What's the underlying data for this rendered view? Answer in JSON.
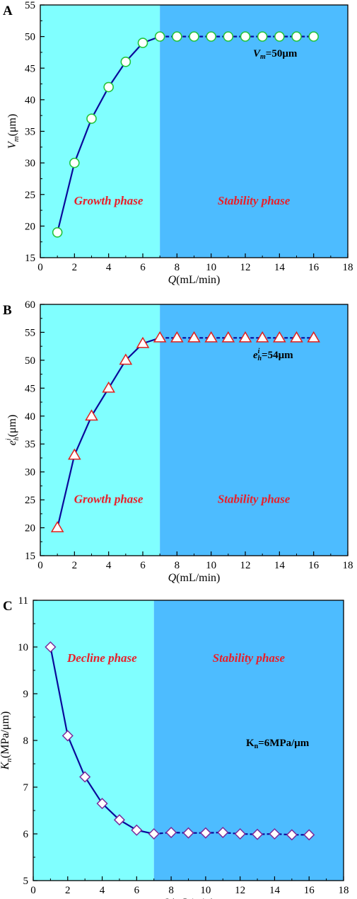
{
  "chart_data": [
    {
      "panel_label": "A",
      "type": "line",
      "xlabel_var": "Q",
      "xlabel_unit": "(mL/min)",
      "ylabel_var": "V",
      "ylabel_sub": "m",
      "ylabel_unit": "(μm)",
      "xlim": [
        0,
        18
      ],
      "ylim": [
        15,
        55
      ],
      "xticks": [
        0,
        2,
        4,
        6,
        8,
        10,
        12,
        14,
        16,
        18
      ],
      "yticks": [
        15,
        20,
        25,
        30,
        35,
        40,
        45,
        50,
        55
      ],
      "phase_split_x": 7,
      "phases": [
        "Growth phase",
        "Stability phase"
      ],
      "annotation": {
        "var": "V",
        "sub": "m",
        "text": "=50μm"
      },
      "marker": "circle",
      "x": [
        1,
        2,
        3,
        4,
        5,
        6,
        7,
        8,
        9,
        10,
        11,
        12,
        13,
        14,
        15,
        16
      ],
      "y": [
        19,
        30,
        37,
        42,
        46,
        49,
        50,
        50,
        50,
        50,
        50,
        50,
        50,
        50,
        50,
        50
      ]
    },
    {
      "panel_label": "B",
      "type": "line",
      "xlabel_var": "Q",
      "xlabel_unit": "(mL/min)",
      "ylabel_var": "e",
      "ylabel_sup": "i",
      "ylabel_sub": "h",
      "ylabel_unit": "(μm)",
      "xlim": [
        0,
        18
      ],
      "ylim": [
        15,
        60
      ],
      "xticks": [
        0,
        2,
        4,
        6,
        8,
        10,
        12,
        14,
        16,
        18
      ],
      "yticks": [
        15,
        20,
        25,
        30,
        35,
        40,
        45,
        50,
        55,
        60
      ],
      "phase_split_x": 7,
      "phases": [
        "Growth phase",
        "Stability phase"
      ],
      "annotation": {
        "var": "e",
        "sup": "i",
        "sub": "h",
        "text": "=54μm"
      },
      "marker": "triangle",
      "x": [
        1,
        2,
        3,
        4,
        5,
        6,
        7,
        8,
        9,
        10,
        11,
        12,
        13,
        14,
        15,
        16
      ],
      "y": [
        20,
        33,
        40,
        45,
        50,
        53,
        54,
        54,
        54,
        54,
        54,
        54,
        54,
        54,
        54,
        54
      ]
    },
    {
      "panel_label": "C",
      "type": "line",
      "xlabel_var": "Q",
      "xlabel_unit": "(mL/min)",
      "ylabel_var": "K",
      "ylabel_sub": "n",
      "ylabel_unit": "(MPa/μm)",
      "xlim": [
        0,
        18
      ],
      "ylim": [
        5,
        11
      ],
      "xticks": [
        0,
        2,
        4,
        6,
        8,
        10,
        12,
        14,
        16,
        18
      ],
      "yticks": [
        5,
        6,
        7,
        8,
        9,
        10,
        11
      ],
      "phase_split_x": 7,
      "phases": [
        "Decline phase",
        "Stability phase"
      ],
      "annotation": {
        "var": "K",
        "sub": "n",
        "text": "=6MPa/μm",
        "upright": true
      },
      "marker": "diamond",
      "x": [
        1,
        2,
        3,
        4,
        5,
        6,
        7,
        8,
        9,
        10,
        11,
        12,
        13,
        14,
        15,
        16
      ],
      "y": [
        10.0,
        8.1,
        7.22,
        6.65,
        6.3,
        6.08,
        6.0,
        6.03,
        6.02,
        6.02,
        6.03,
        6.0,
        5.99,
        6.0,
        5.98,
        5.98
      ]
    }
  ],
  "colors": {
    "growth_bg": "#80FFFF",
    "stability_bg": "#4DBCFF",
    "line": "#0A0A9A",
    "phase_text": "#E8202A",
    "circle_marker_stroke": "#22C43A",
    "triangle_marker_stroke": "#E0201C",
    "diamond_marker_stroke": "#7A2A9A",
    "marker_fill": "#FFFFFF"
  }
}
